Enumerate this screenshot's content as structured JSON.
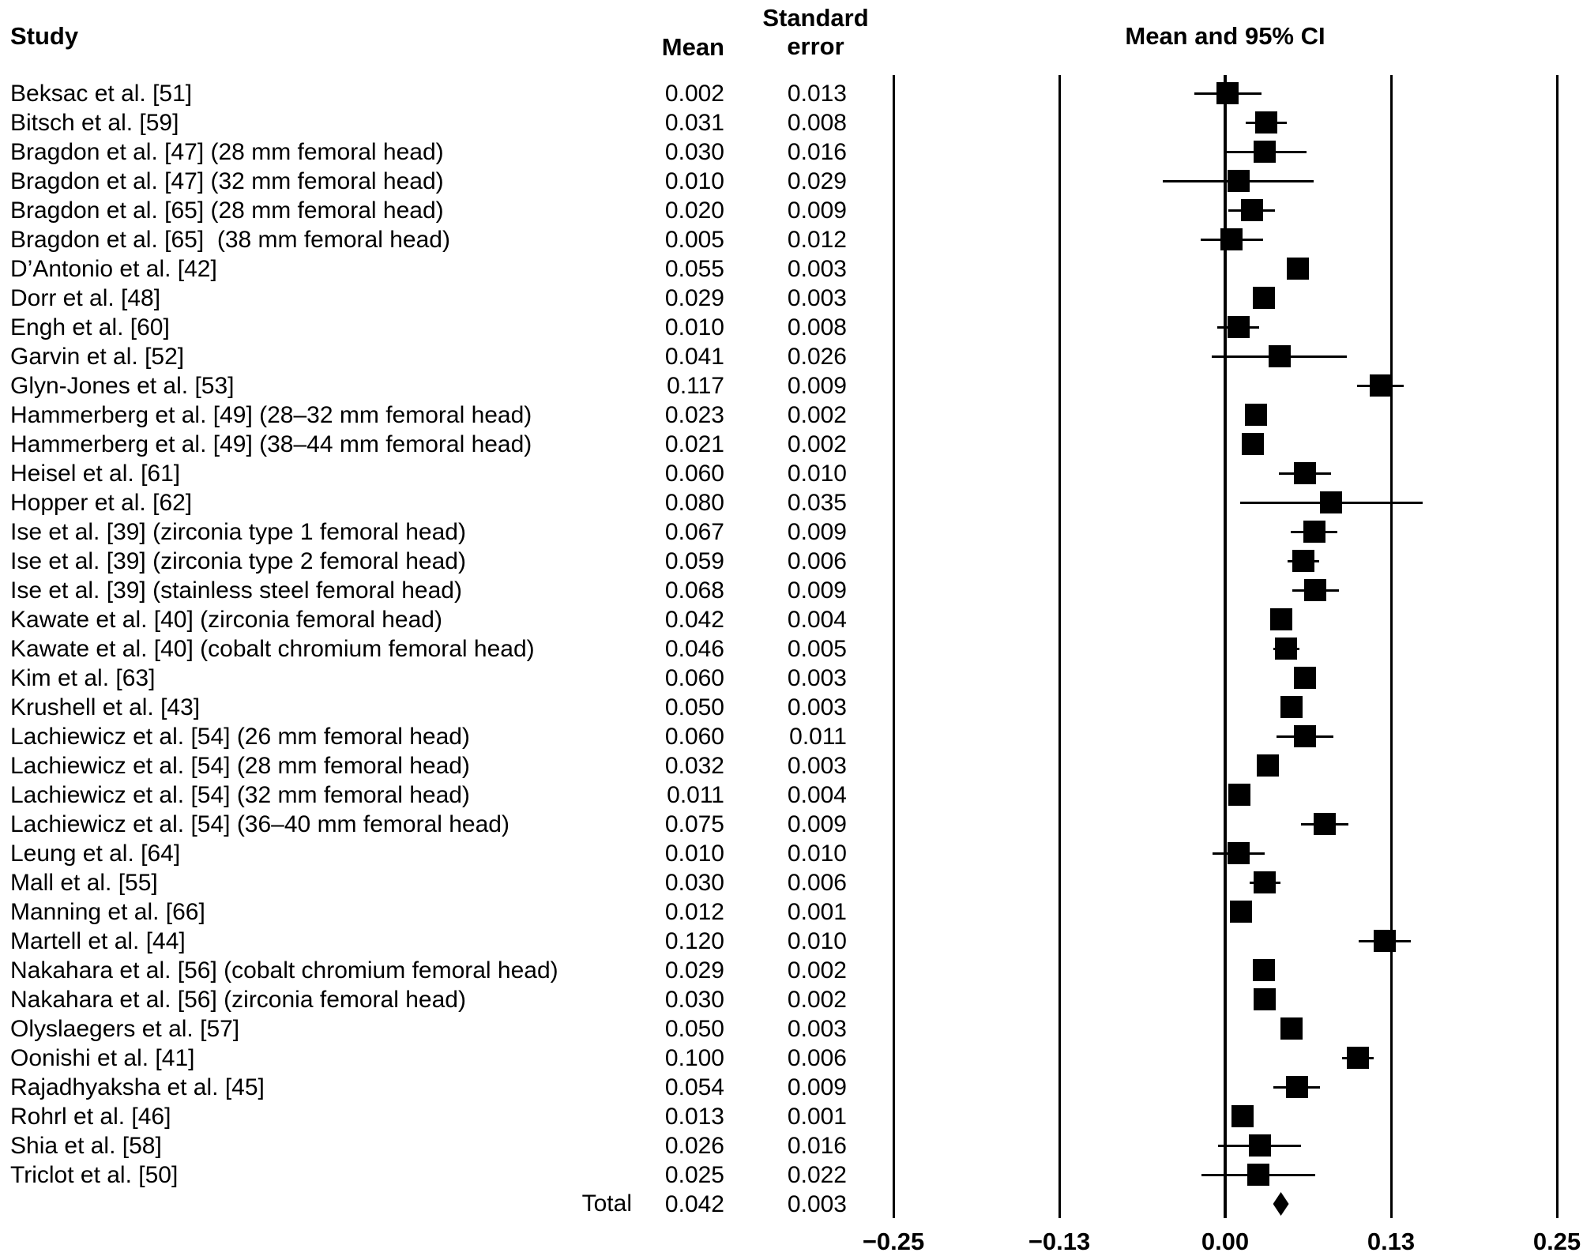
{
  "header": {
    "study": "Study",
    "mean": "Mean",
    "se_line1": "Standard",
    "se_line2": "error",
    "plot_title": "Mean and 95% CI"
  },
  "chart_data": {
    "type": "forest",
    "title": "Mean and 95% CI",
    "columns": [
      "Study",
      "Mean",
      "Standard error"
    ],
    "value_format_decimals": 3,
    "ci_multiplier": 1.96,
    "axis": {
      "min": -0.25,
      "max": 0.25,
      "ticks": [
        -0.25,
        -0.125,
        0,
        0.125,
        0.25
      ],
      "tick_labels": [
        "−0.25",
        "−0.13",
        "0.00",
        "0.13",
        "0.25"
      ],
      "grid": "vertical-lines"
    },
    "studies": [
      {
        "label": "Beksac et al. [51]",
        "mean": 0.002,
        "se": 0.013
      },
      {
        "label": "Bitsch et al. [59]",
        "mean": 0.031,
        "se": 0.008
      },
      {
        "label": "Bragdon et al. [47] (28 mm femoral head)",
        "mean": 0.03,
        "se": 0.016
      },
      {
        "label": "Bragdon et al. [47] (32 mm femoral head)",
        "mean": 0.01,
        "se": 0.029
      },
      {
        "label": "Bragdon et al. [65] (28 mm femoral head)",
        "mean": 0.02,
        "se": 0.009
      },
      {
        "label": "Bragdon et al. [65]  (38 mm femoral head)",
        "mean": 0.005,
        "se": 0.012
      },
      {
        "label": "D’Antonio et al. [42]",
        "mean": 0.055,
        "se": 0.003
      },
      {
        "label": "Dorr et al. [48]",
        "mean": 0.029,
        "se": 0.003
      },
      {
        "label": "Engh et al. [60]",
        "mean": 0.01,
        "se": 0.008
      },
      {
        "label": "Garvin et al. [52]",
        "mean": 0.041,
        "se": 0.026
      },
      {
        "label": "Glyn-Jones et al. [53]",
        "mean": 0.117,
        "se": 0.009
      },
      {
        "label": "Hammerberg et al. [49] (28–32 mm femoral head)",
        "mean": 0.023,
        "se": 0.002
      },
      {
        "label": "Hammerberg et al. [49] (38–44 mm femoral head)",
        "mean": 0.021,
        "se": 0.002
      },
      {
        "label": "Heisel et al. [61]",
        "mean": 0.06,
        "se": 0.01
      },
      {
        "label": "Hopper et al. [62]",
        "mean": 0.08,
        "se": 0.035
      },
      {
        "label": "Ise et al. [39] (zirconia type 1 femoral head)",
        "mean": 0.067,
        "se": 0.009
      },
      {
        "label": "Ise et al. [39] (zirconia type 2 femoral head)",
        "mean": 0.059,
        "se": 0.006
      },
      {
        "label": "Ise et al. [39] (stainless steel femoral head)",
        "mean": 0.068,
        "se": 0.009
      },
      {
        "label": "Kawate et al. [40] (zirconia femoral head)",
        "mean": 0.042,
        "se": 0.004
      },
      {
        "label": "Kawate et al. [40] (cobalt chromium femoral head)",
        "mean": 0.046,
        "se": 0.005
      },
      {
        "label": "Kim et al. [63]",
        "mean": 0.06,
        "se": 0.003
      },
      {
        "label": "Krushell et al. [43]",
        "mean": 0.05,
        "se": 0.003
      },
      {
        "label": "Lachiewicz et al. [54] (26 mm femoral head)",
        "mean": 0.06,
        "se": 0.011
      },
      {
        "label": "Lachiewicz et al. [54] (28 mm femoral head)",
        "mean": 0.032,
        "se": 0.003
      },
      {
        "label": "Lachiewicz et al. [54] (32 mm femoral head)",
        "mean": 0.011,
        "se": 0.004
      },
      {
        "label": "Lachiewicz et al. [54] (36–40 mm femoral head)",
        "mean": 0.075,
        "se": 0.009
      },
      {
        "label": "Leung et al. [64]",
        "mean": 0.01,
        "se": 0.01
      },
      {
        "label": "Mall et al. [55]",
        "mean": 0.03,
        "se": 0.006
      },
      {
        "label": "Manning et al. [66]",
        "mean": 0.012,
        "se": 0.001
      },
      {
        "label": "Martell et al. [44]",
        "mean": 0.12,
        "se": 0.01
      },
      {
        "label": "Nakahara et al. [56] (cobalt chromium femoral head)",
        "mean": 0.029,
        "se": 0.002
      },
      {
        "label": "Nakahara et al. [56] (zirconia femoral head)",
        "mean": 0.03,
        "se": 0.002
      },
      {
        "label": "Olyslaegers et al. [57]",
        "mean": 0.05,
        "se": 0.003
      },
      {
        "label": "Oonishi et al. [41]",
        "mean": 0.1,
        "se": 0.006
      },
      {
        "label": "Rajadhyaksha et al. [45]",
        "mean": 0.054,
        "se": 0.009
      },
      {
        "label": "Rohrl et al. [46]",
        "mean": 0.013,
        "se": 0.001
      },
      {
        "label": "Shia et al. [58]",
        "mean": 0.026,
        "se": 0.016
      },
      {
        "label": "Triclot et al. [50]",
        "mean": 0.025,
        "se": 0.022
      }
    ],
    "total": {
      "label": "Total",
      "mean": 0.042,
      "se": 0.003
    },
    "marker_color": "#000000",
    "background_color": "#ffffff"
  }
}
